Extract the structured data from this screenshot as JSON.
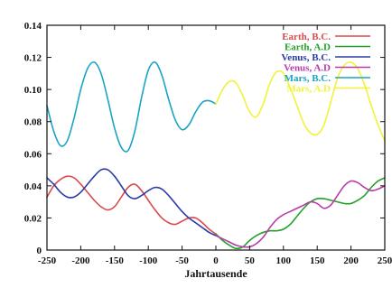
{
  "chart_data": {
    "type": "line",
    "title": "",
    "xlabel": "Jahrtausende",
    "ylabel": "",
    "xlim": [
      -250,
      250
    ],
    "ylim": [
      0,
      0.14
    ],
    "xticks": [
      -250,
      -200,
      -150,
      -100,
      -50,
      0,
      50,
      100,
      150,
      200,
      250
    ],
    "yticks": [
      0,
      0.02,
      0.04,
      0.06,
      0.08,
      0.1,
      0.12,
      0.14
    ],
    "grid": false,
    "legend_position": "top-right",
    "series": [
      {
        "name": "Earth, B.C.",
        "color": "#d94a4a",
        "x": [
          -250,
          -240,
          -230,
          -220,
          -210,
          -200,
          -190,
          -180,
          -170,
          -160,
          -150,
          -140,
          -130,
          -120,
          -110,
          -100,
          -90,
          -80,
          -70,
          -60,
          -50,
          -40,
          -30,
          -20,
          -10,
          0
        ],
        "y": [
          0.033,
          0.04,
          0.044,
          0.046,
          0.045,
          0.041,
          0.036,
          0.031,
          0.027,
          0.025,
          0.027,
          0.033,
          0.039,
          0.041,
          0.037,
          0.031,
          0.025,
          0.02,
          0.017,
          0.016,
          0.018,
          0.02,
          0.02,
          0.017,
          0.013,
          0.01
        ]
      },
      {
        "name": "Earth, A.D",
        "color": "#22a02a",
        "x": [
          0,
          10,
          20,
          30,
          40,
          50,
          60,
          70,
          80,
          90,
          100,
          110,
          120,
          130,
          140,
          150,
          160,
          170,
          180,
          190,
          200,
          210,
          220,
          230,
          240,
          250
        ],
        "y": [
          0.01,
          0.006,
          0.003,
          0.001,
          0.002,
          0.006,
          0.009,
          0.011,
          0.012,
          0.012,
          0.013,
          0.016,
          0.021,
          0.026,
          0.03,
          0.032,
          0.032,
          0.031,
          0.03,
          0.029,
          0.029,
          0.031,
          0.034,
          0.039,
          0.043,
          0.045
        ]
      },
      {
        "name": "Venus, B.C.",
        "color": "#2a3aa6",
        "x": [
          -250,
          -240,
          -230,
          -220,
          -210,
          -200,
          -190,
          -180,
          -170,
          -160,
          -150,
          -140,
          -130,
          -120,
          -110,
          -100,
          -90,
          -80,
          -70,
          -60,
          -50,
          -40,
          -30,
          -20,
          -10,
          0
        ],
        "y": [
          0.045,
          0.041,
          0.036,
          0.033,
          0.033,
          0.036,
          0.041,
          0.046,
          0.05,
          0.05,
          0.046,
          0.04,
          0.034,
          0.032,
          0.034,
          0.037,
          0.039,
          0.038,
          0.034,
          0.029,
          0.024,
          0.02,
          0.017,
          0.014,
          0.011,
          0.009
        ]
      },
      {
        "name": "Venus, A.D",
        "color": "#b83aa8",
        "x": [
          0,
          10,
          20,
          30,
          40,
          50,
          60,
          70,
          80,
          90,
          100,
          110,
          120,
          130,
          140,
          150,
          160,
          170,
          180,
          190,
          200,
          210,
          220,
          230,
          240,
          250
        ],
        "y": [
          0.009,
          0.007,
          0.005,
          0.003,
          0.002,
          0.002,
          0.004,
          0.008,
          0.014,
          0.019,
          0.022,
          0.024,
          0.026,
          0.028,
          0.03,
          0.029,
          0.026,
          0.028,
          0.034,
          0.04,
          0.043,
          0.042,
          0.039,
          0.037,
          0.038,
          0.04
        ]
      },
      {
        "name": "Mars, B.C.",
        "color": "#1aa4c4",
        "x": [
          -250,
          -240,
          -230,
          -220,
          -210,
          -200,
          -190,
          -180,
          -170,
          -160,
          -150,
          -140,
          -130,
          -120,
          -110,
          -100,
          -90,
          -80,
          -70,
          -60,
          -50,
          -40,
          -30,
          -20,
          -10,
          0
        ],
        "y": [
          0.09,
          0.074,
          0.065,
          0.068,
          0.082,
          0.1,
          0.113,
          0.117,
          0.11,
          0.094,
          0.076,
          0.064,
          0.062,
          0.074,
          0.095,
          0.112,
          0.117,
          0.109,
          0.094,
          0.081,
          0.075,
          0.078,
          0.086,
          0.092,
          0.093,
          0.091
        ]
      },
      {
        "name": "Mars, A.D",
        "color": "#f2f23a",
        "x": [
          0,
          10,
          20,
          30,
          40,
          50,
          60,
          70,
          80,
          90,
          100,
          110,
          120,
          130,
          140,
          150,
          160,
          170,
          180,
          190,
          200,
          210,
          220,
          230,
          240,
          250
        ],
        "y": [
          0.091,
          0.1,
          0.105,
          0.104,
          0.096,
          0.086,
          0.083,
          0.091,
          0.104,
          0.111,
          0.11,
          0.101,
          0.09,
          0.079,
          0.073,
          0.072,
          0.078,
          0.092,
          0.107,
          0.115,
          0.117,
          0.113,
          0.103,
          0.09,
          0.078,
          0.068
        ]
      }
    ]
  }
}
